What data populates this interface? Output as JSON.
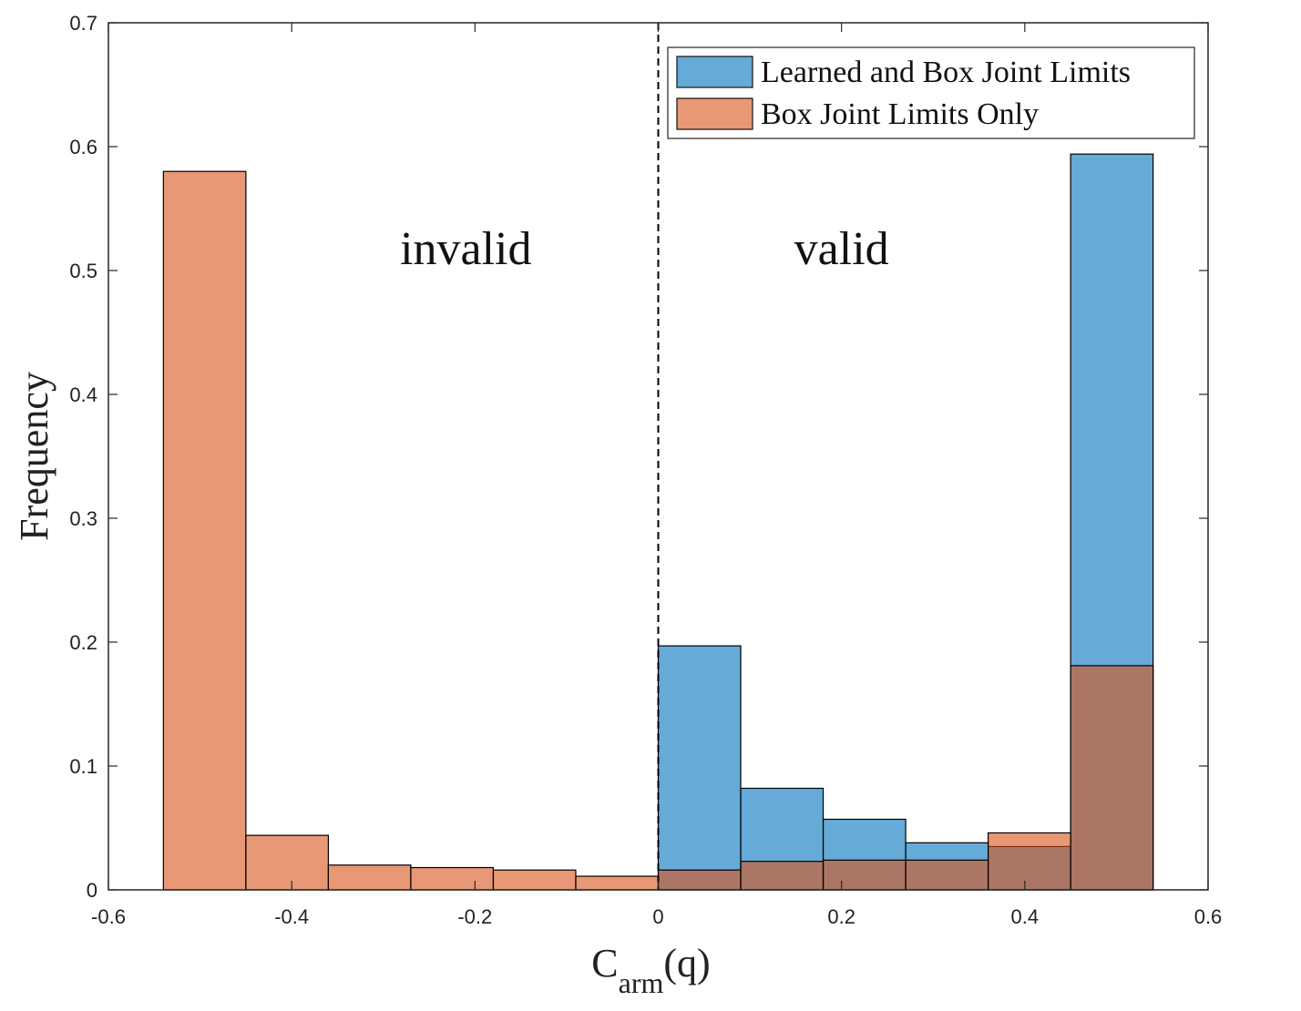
{
  "chart_data": {
    "type": "bar",
    "xlabel": {
      "main": "C",
      "subscript": "arm",
      "suffix": "(q)"
    },
    "ylabel": "Frequency",
    "xlim": [
      -0.6,
      0.6
    ],
    "ylim": [
      0,
      0.7
    ],
    "xticks": [
      "-0.6",
      "-0.4",
      "-0.2",
      "0",
      "0.2",
      "0.4",
      "0.6"
    ],
    "yticks": [
      "0",
      "0.1",
      "0.2",
      "0.3",
      "0.4",
      "0.5",
      "0.6",
      "0.7"
    ],
    "divider_x": 0,
    "annotations": [
      {
        "text": "invalid",
        "x": -0.21,
        "y": 0.505
      },
      {
        "text": "valid",
        "x": 0.2,
        "y": 0.505
      }
    ],
    "legend_position": "top-right",
    "series": [
      {
        "name": "Learned and Box Joint Limits",
        "color": "#0072BD",
        "bins": [
          {
            "x0": 0.0,
            "x1": 0.09,
            "value": 0.197
          },
          {
            "x0": 0.09,
            "x1": 0.18,
            "value": 0.082
          },
          {
            "x0": 0.18,
            "x1": 0.27,
            "value": 0.057
          },
          {
            "x0": 0.27,
            "x1": 0.36,
            "value": 0.038
          },
          {
            "x0": 0.36,
            "x1": 0.45,
            "value": 0.035
          },
          {
            "x0": 0.45,
            "x1": 0.54,
            "value": 0.594
          }
        ]
      },
      {
        "name": "Box Joint Limits Only",
        "color": "#D95319",
        "bins": [
          {
            "x0": -0.54,
            "x1": -0.45,
            "value": 0.58
          },
          {
            "x0": -0.45,
            "x1": -0.36,
            "value": 0.044
          },
          {
            "x0": -0.36,
            "x1": -0.27,
            "value": 0.02
          },
          {
            "x0": -0.27,
            "x1": -0.18,
            "value": 0.018
          },
          {
            "x0": -0.18,
            "x1": -0.09,
            "value": 0.016
          },
          {
            "x0": -0.09,
            "x1": 0.0,
            "value": 0.011
          },
          {
            "x0": 0.0,
            "x1": 0.09,
            "value": 0.016
          },
          {
            "x0": 0.09,
            "x1": 0.18,
            "value": 0.023
          },
          {
            "x0": 0.18,
            "x1": 0.27,
            "value": 0.024
          },
          {
            "x0": 0.27,
            "x1": 0.36,
            "value": 0.024
          },
          {
            "x0": 0.36,
            "x1": 0.45,
            "value": 0.046
          },
          {
            "x0": 0.45,
            "x1": 0.54,
            "value": 0.181
          }
        ]
      }
    ]
  }
}
